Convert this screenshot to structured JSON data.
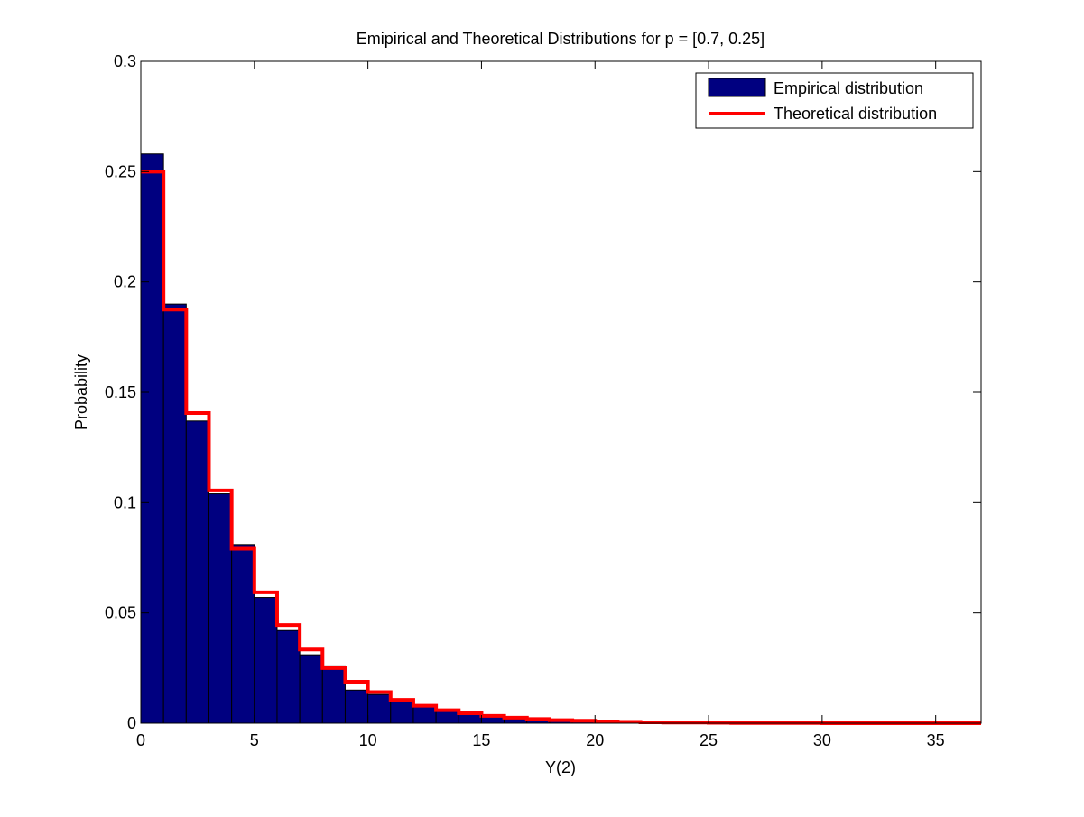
{
  "chart_data": {
    "type": "bar",
    "title": "Emipirical and Theoretical Distributions for p = [0.7, 0.25]",
    "xlabel": "Y(2)",
    "ylabel": "Probability",
    "xlim": [
      0,
      37
    ],
    "ylim": [
      0,
      0.3
    ],
    "xticks": [
      0,
      5,
      10,
      15,
      20,
      25,
      30,
      35
    ],
    "yticks": [
      0,
      0.05,
      0.1,
      0.15,
      0.2,
      0.25,
      0.3
    ],
    "xtick_labels": [
      "0",
      "5",
      "10",
      "15",
      "20",
      "25",
      "30",
      "35"
    ],
    "ytick_labels": [
      "0",
      "0.05",
      "0.1",
      "0.15",
      "0.2",
      "0.25",
      "0.3"
    ],
    "grid": false,
    "legend_position": "top-right",
    "series": [
      {
        "name": "Empirical distribution",
        "type": "bar",
        "color": "#000080",
        "x": [
          0,
          1,
          2,
          3,
          4,
          5,
          6,
          7,
          8,
          9,
          10,
          11,
          12,
          13,
          14,
          15,
          16,
          17,
          18,
          19,
          20,
          21,
          22,
          23,
          24,
          25,
          26,
          27,
          28,
          29,
          30,
          31,
          32,
          33,
          34,
          35,
          36
        ],
        "values": [
          0.258,
          0.19,
          0.137,
          0.104,
          0.081,
          0.057,
          0.042,
          0.031,
          0.026,
          0.015,
          0.013,
          0.01,
          0.008,
          0.006,
          0.004,
          0.003,
          0.0025,
          0.002,
          0.0015,
          0.001,
          0.0008,
          0.0006,
          0.0005,
          0.0004,
          0.0003,
          0.0002,
          0.0002,
          0.0001,
          0.0001,
          0.0001,
          0.0001,
          0.0001,
          0.0001,
          0.0001,
          0.0001,
          0.0001,
          0.0001
        ]
      },
      {
        "name": "Theoretical distribution",
        "type": "step",
        "color": "#ff0000",
        "x": [
          0,
          1,
          2,
          3,
          4,
          5,
          6,
          7,
          8,
          9,
          10,
          11,
          12,
          13,
          14,
          15,
          16,
          17,
          18,
          19,
          20,
          21,
          22,
          23,
          24,
          25,
          26,
          27,
          28,
          29,
          30,
          31,
          32,
          33,
          34,
          35,
          36
        ],
        "values": [
          0.25,
          0.1875,
          0.1406,
          0.1055,
          0.0791,
          0.0593,
          0.0445,
          0.0334,
          0.025,
          0.0188,
          0.0141,
          0.0106,
          0.0079,
          0.0059,
          0.0045,
          0.0033,
          0.0025,
          0.0019,
          0.0014,
          0.0011,
          0.0008,
          0.0006,
          0.0004,
          0.0003,
          0.0003,
          0.0002,
          0.0001,
          0.0001,
          0.0001,
          0.0001,
          0.0,
          0.0,
          0.0,
          0.0,
          0.0,
          0.0,
          0.0
        ]
      }
    ]
  }
}
